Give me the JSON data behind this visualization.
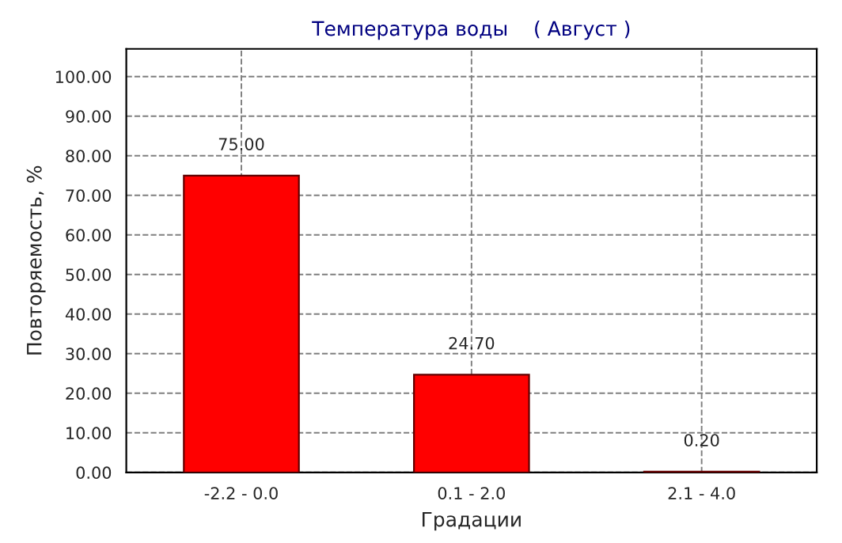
{
  "chart_data": {
    "type": "bar",
    "title": "Температура воды    ( Август )",
    "xlabel": "Градации",
    "ylabel": "Повторяемость, %",
    "categories": [
      "-2.2 - 0.0",
      "0.1 - 2.0",
      "2.1 - 4.0"
    ],
    "values": [
      75.0,
      24.7,
      0.2
    ],
    "value_labels": [
      "75.00",
      "24.70",
      "0.20"
    ],
    "color": "#ff0000",
    "ylim": [
      0,
      107
    ],
    "yticks": [
      {
        "value": 0,
        "label": "0.00"
      },
      {
        "value": 10,
        "label": "10.00"
      },
      {
        "value": 20,
        "label": "20.00"
      },
      {
        "value": 30,
        "label": "30.00"
      },
      {
        "value": 40,
        "label": "40.00"
      },
      {
        "value": 50,
        "label": "50.00"
      },
      {
        "value": 60,
        "label": "60.00"
      },
      {
        "value": 70,
        "label": "70.00"
      },
      {
        "value": 80,
        "label": "80.00"
      },
      {
        "value": 90,
        "label": "90.00"
      },
      {
        "value": 100,
        "label": "100.00"
      }
    ],
    "grid": true
  }
}
